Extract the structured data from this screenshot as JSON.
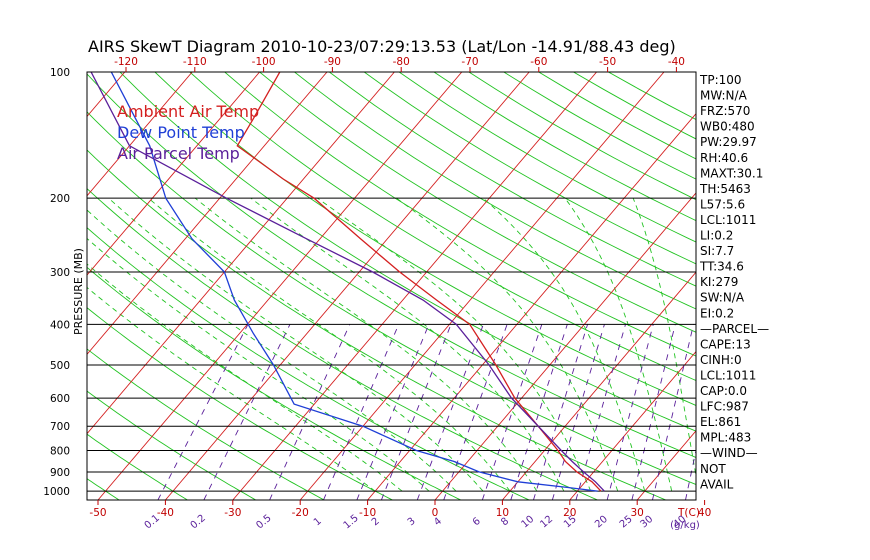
{
  "chart_data": {
    "type": "line",
    "title": "AIRS SkewT Diagram 2010-10-23/07:29:13.53 (Lat/Lon -14.91/88.43 deg)",
    "ylabel": "PRESSURE (MB)",
    "xlabel_bottom_units": "T(C)",
    "mixing_ratio_units": "(g/kg)",
    "pressure_range": [
      1050,
      100
    ],
    "temperature_range_bottom": [
      -55,
      50
    ],
    "pressure_ticks": [
      100,
      200,
      300,
      400,
      500,
      600,
      700,
      800,
      900,
      1000
    ],
    "top_temp_ticks": [
      "-120",
      "-110",
      "-100",
      "-90",
      "-80",
      "-70",
      "-60",
      "-50",
      "-40"
    ],
    "bottom_temp_ticks": [
      "-50",
      "-40",
      "-30",
      "-20",
      "-10",
      "0",
      "10",
      "20",
      "30",
      "40"
    ],
    "mixing_ratio_ticks": [
      "0.1",
      "0.2",
      "0.5",
      "1",
      "1.5",
      "2",
      "3",
      "4",
      "6",
      "8",
      "10",
      "12",
      "15",
      "20",
      "25",
      "30",
      "40"
    ],
    "grid": true,
    "legend": {
      "position": "top-left",
      "entries": [
        {
          "label": "Ambient Air Temp",
          "color": "#d42020"
        },
        {
          "label": "Dew Point Temp",
          "color": "#1f3fd6"
        },
        {
          "label": "Air Parcel Temp",
          "color": "#5a1f9a"
        }
      ]
    },
    "colors": {
      "isotherm": "#d42020",
      "dry_adiabat": "#22c322",
      "moist_adiabat": "#22c322",
      "mixing_ratio": "#5a1f9a",
      "isobar": "#000000"
    },
    "series": [
      {
        "name": "Ambient Air Temp",
        "color": "#d42020",
        "points": [
          {
            "p": 1000,
            "t": 23.5
          },
          {
            "p": 950,
            "t": 21
          },
          {
            "p": 900,
            "t": 17.5
          },
          {
            "p": 850,
            "t": 14.5
          },
          {
            "p": 800,
            "t": 12
          },
          {
            "p": 700,
            "t": 6
          },
          {
            "p": 600,
            "t": -1
          },
          {
            "p": 500,
            "t": -8
          },
          {
            "p": 400,
            "t": -17
          },
          {
            "p": 350,
            "t": -25
          },
          {
            "p": 300,
            "t": -34
          },
          {
            "p": 250,
            "t": -44
          },
          {
            "p": 200,
            "t": -56
          },
          {
            "p": 180,
            "t": -63
          },
          {
            "p": 150,
            "t": -74
          },
          {
            "p": 130,
            "t": -75
          },
          {
            "p": 100,
            "t": -77
          }
        ]
      },
      {
        "name": "Dew Point Temp",
        "color": "#1f3fd6",
        "points": [
          {
            "p": 1000,
            "t": 23
          },
          {
            "p": 980,
            "t": 18
          },
          {
            "p": 950,
            "t": 10
          },
          {
            "p": 900,
            "t": 3
          },
          {
            "p": 850,
            "t": -2
          },
          {
            "p": 800,
            "t": -9
          },
          {
            "p": 700,
            "t": -20
          },
          {
            "p": 620,
            "t": -33
          },
          {
            "p": 500,
            "t": -41
          },
          {
            "p": 420,
            "t": -48
          },
          {
            "p": 350,
            "t": -55
          },
          {
            "p": 300,
            "t": -60
          },
          {
            "p": 250,
            "t": -69
          },
          {
            "p": 200,
            "t": -78
          },
          {
            "p": 150,
            "t": -87
          },
          {
            "p": 100,
            "t": -102
          }
        ]
      },
      {
        "name": "Air Parcel Temp",
        "color": "#5a1f9a",
        "points": [
          {
            "p": 1000,
            "t": 24
          },
          {
            "p": 950,
            "t": 21.5
          },
          {
            "p": 900,
            "t": 18.5
          },
          {
            "p": 850,
            "t": 15.5
          },
          {
            "p": 800,
            "t": 12.5
          },
          {
            "p": 700,
            "t": 6
          },
          {
            "p": 600,
            "t": -1.5
          },
          {
            "p": 500,
            "t": -9
          },
          {
            "p": 400,
            "t": -19
          },
          {
            "p": 350,
            "t": -27
          },
          {
            "p": 300,
            "t": -38
          },
          {
            "p": 250,
            "t": -52
          },
          {
            "p": 200,
            "t": -69
          },
          {
            "p": 150,
            "t": -90
          },
          {
            "p": 100,
            "t": -105
          }
        ]
      }
    ],
    "indices": [
      "TP:100",
      "MW:N/A",
      "FRZ:570",
      "WB0:480",
      "PW:29.97",
      "RH:40.6",
      "MAXT:30.1",
      "TH:5463",
      "L57:5.6",
      "LCL:1011",
      "LI:0.2",
      "SI:7.7",
      "TT:34.6",
      "KI:279",
      "SW:N/A",
      "EI:0.2",
      "—PARCEL—",
      "CAPE:13",
      "CINH:0",
      "LCL:1011",
      "CAP:0.0",
      "LFC:987",
      "EL:861",
      "MPL:483",
      "—WIND—",
      "NOT",
      "AVAIL"
    ]
  }
}
